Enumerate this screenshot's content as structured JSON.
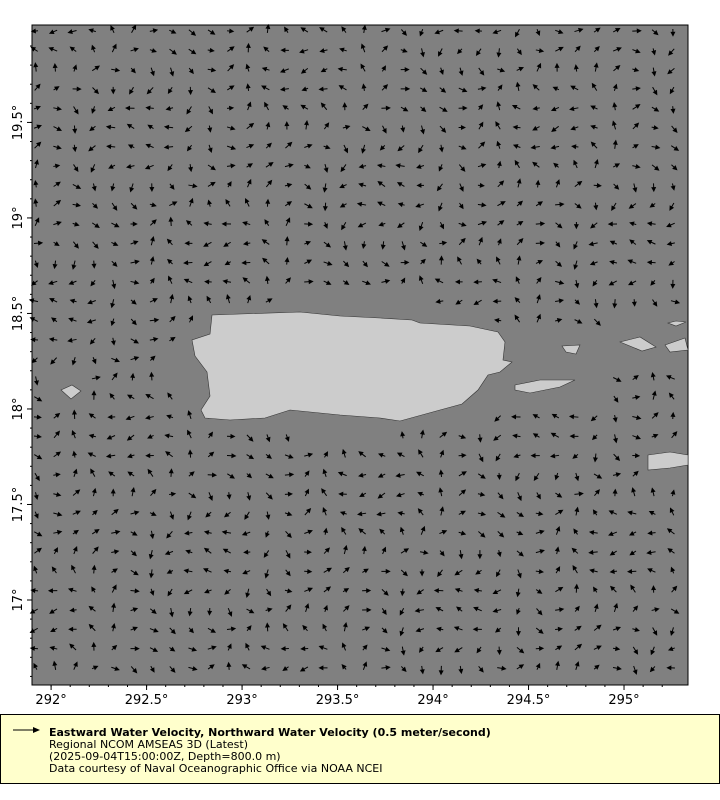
{
  "map": {
    "lon_range": [
      291.9,
      295.335
    ],
    "lat_range": [
      16.555,
      20.01
    ],
    "x_ticks": [
      "292°",
      "292.5°",
      "293°",
      "293.5°",
      "294°",
      "294.5°",
      "295°"
    ],
    "x_tick_values": [
      292,
      292.5,
      293,
      293.5,
      294,
      294.5,
      295
    ],
    "y_ticks": [
      "17°",
      "17.5°",
      "18°",
      "18.5°",
      "19°",
      "19.5°"
    ],
    "y_tick_values": [
      17,
      17.5,
      18,
      18.5,
      19,
      19.5
    ],
    "ocean_color": "#808080",
    "land_color": "#cccccc",
    "vector_color": "#000000"
  },
  "legend": {
    "title": "Eastward Water Velocity, Northward Water Velocity (0.5 meter/second)",
    "line2": "Regional NCOM AMSEAS 3D (Latest)",
    "line3": "(2025-09-04T15:00:00Z, Depth=800.0 m)",
    "line4": "Data courtesy of Naval Oceanographic Office via NOAA NCEI",
    "background": "#ffffcc"
  }
}
